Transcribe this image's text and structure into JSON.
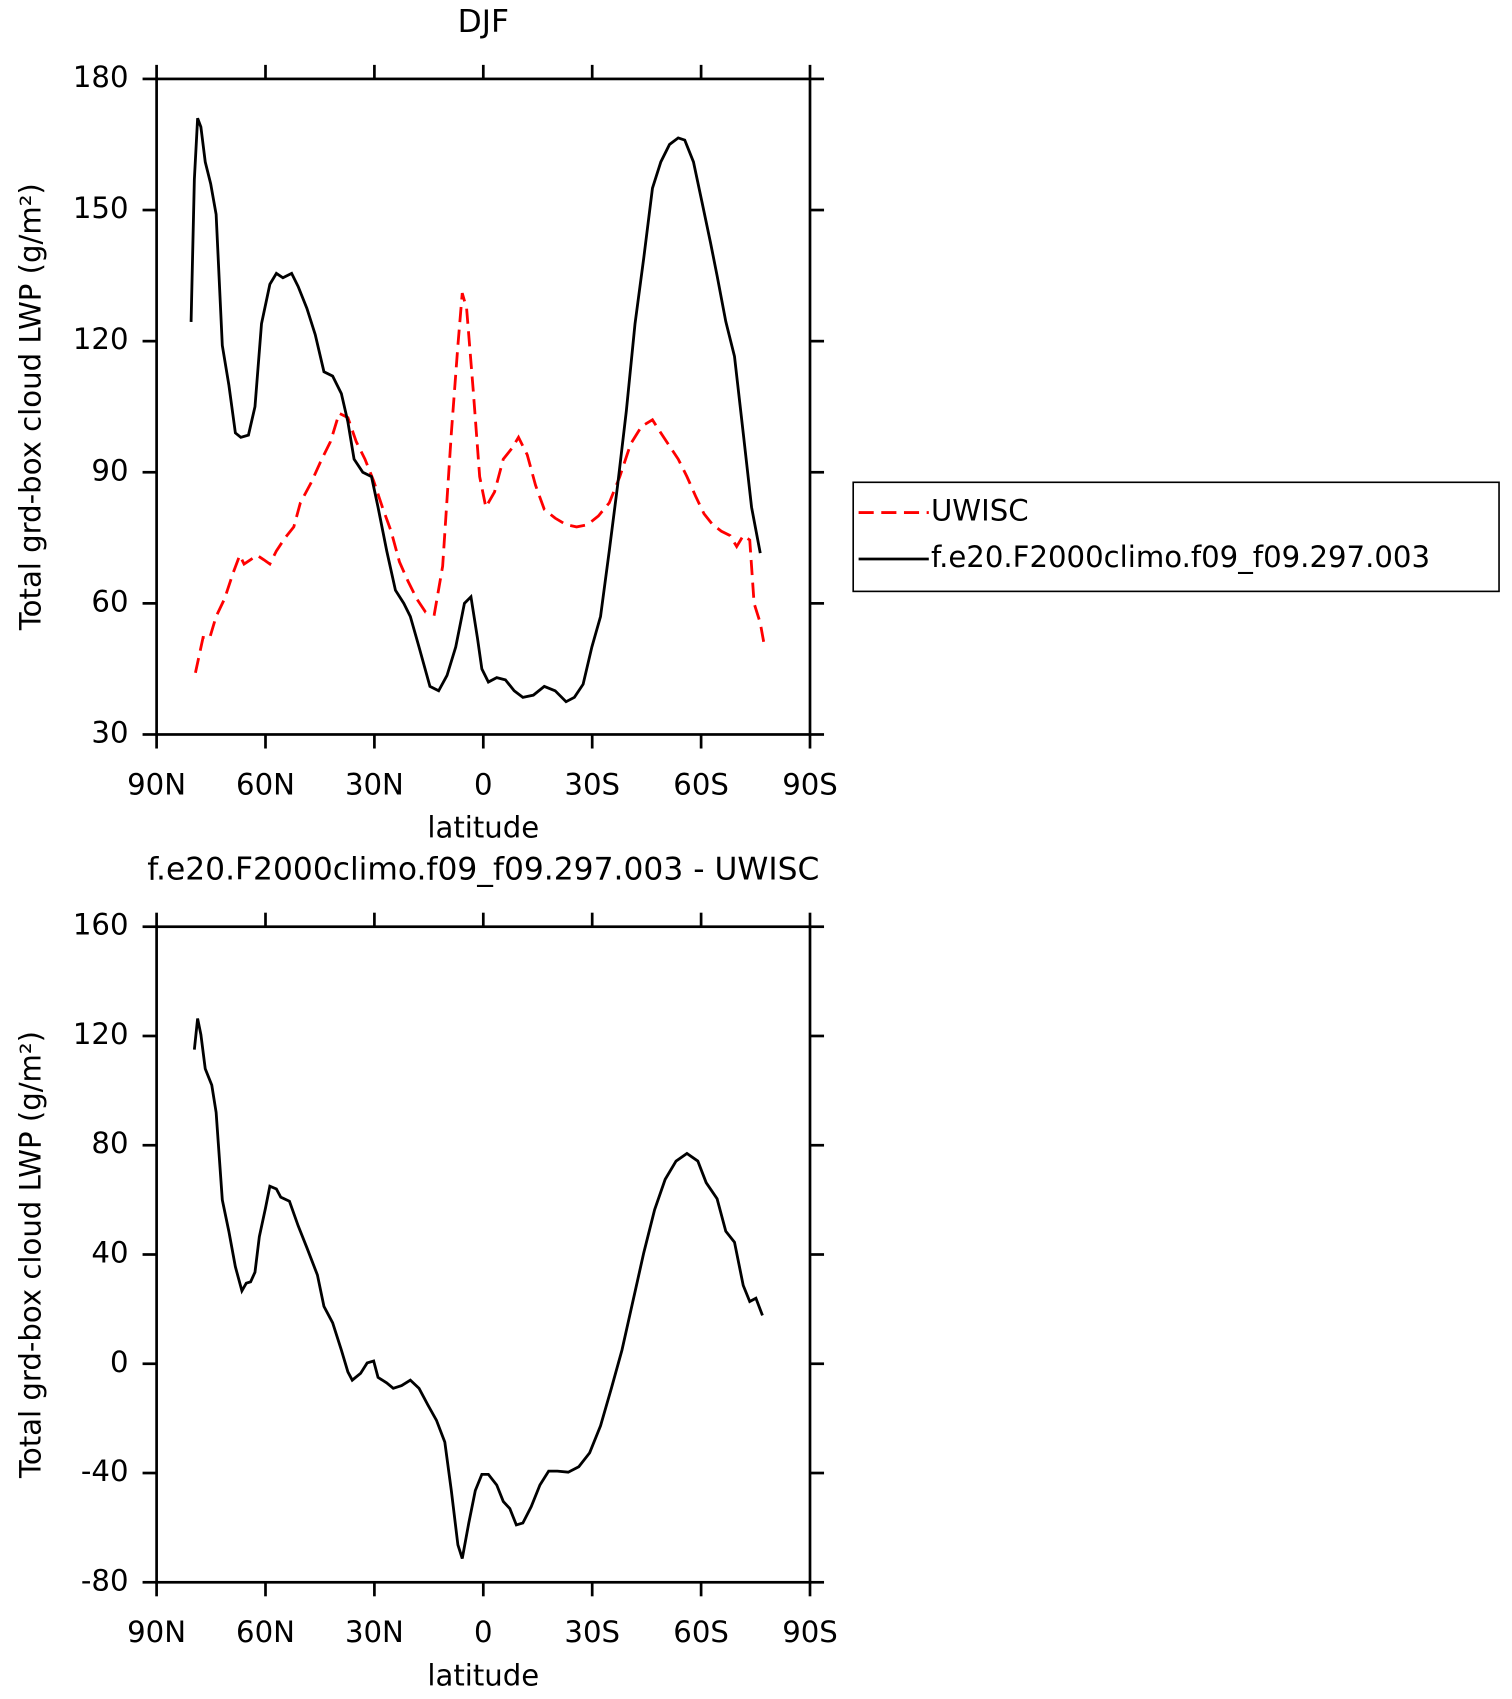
{
  "chart_data": [
    {
      "type": "line",
      "title": "DJF",
      "xlabel": "latitude",
      "ylabel": "Total grd-box cloud LWP (g/m²)",
      "xlim": [
        90,
        -90
      ],
      "xticks": [
        {
          "value": 90,
          "label": "90N"
        },
        {
          "value": 60,
          "label": "60N"
        },
        {
          "value": 30,
          "label": "30N"
        },
        0,
        {
          "value": -30,
          "label": "30S"
        },
        {
          "value": -60,
          "label": "60S"
        },
        {
          "value": -90,
          "label": "90S"
        }
      ],
      "ylim": [
        30,
        180
      ],
      "yticks": [
        30,
        60,
        90,
        120,
        150,
        180
      ],
      "legend": "right",
      "series": [
        {
          "name": "UWISC",
          "color": "#ff0000",
          "dashed": true,
          "x": [
            79.3,
            77.2,
            75.4,
            73.6,
            71.3,
            68.9,
            67.1,
            65.9,
            64.1,
            62.3,
            60.5,
            58.8,
            57.0,
            54.6,
            52.2,
            50.4,
            47.5,
            44.5,
            42.1,
            39.7,
            37.3,
            35.0,
            32.6,
            30.2,
            27.8,
            25.4,
            23.1,
            20.7,
            18.3,
            15.9,
            13.5,
            11.2,
            8.8,
            7.0,
            5.8,
            4.6,
            2.8,
            1.0,
            -0.7,
            -3.1,
            -5.5,
            -7.9,
            -9.7,
            -12.1,
            -14.4,
            -16.8,
            -19.8,
            -22.8,
            -25.7,
            -28.7,
            -31.7,
            -34.7,
            -37.6,
            -40.6,
            -43.6,
            -46.6,
            -48.9,
            -51.3,
            -53.7,
            -56.1,
            -58.5,
            -60.8,
            -63.2,
            -65.6,
            -68.0,
            -69.8,
            -71.6,
            -73.4,
            -74.6,
            -76.3,
            -77.5
          ],
          "values": [
            44.1,
            52.2,
            52,
            57,
            61,
            67,
            71,
            69,
            70,
            71,
            70,
            69,
            72,
            75,
            77.5,
            83,
            87.5,
            93,
            97,
            103.5,
            102.5,
            97,
            93,
            88,
            82,
            76.5,
            69.5,
            65,
            61,
            58,
            57.5,
            68.5,
            99,
            119,
            131,
            127.5,
            109,
            89,
            82,
            85.5,
            93,
            95.5,
            98,
            94,
            87,
            81.5,
            79.5,
            78,
            77.5,
            78,
            80,
            83,
            89,
            96.5,
            100.5,
            102,
            99,
            96,
            93,
            89,
            84.5,
            80.5,
            78,
            76.5,
            75.5,
            73,
            75.5,
            74.5,
            60,
            55.5,
            50
          ]
        },
        {
          "name": "f.e20.F2000climo.f09_f09.297.003",
          "color": "#000000",
          "dashed": false,
          "x": [
            80.5,
            79.6,
            78.7,
            77.8,
            76.6,
            75.1,
            73.6,
            71.9,
            70.1,
            68.3,
            66.8,
            64.7,
            62.9,
            61.1,
            58.8,
            57.0,
            55.2,
            52.8,
            51.0,
            48.6,
            46.3,
            43.9,
            41.5,
            39.1,
            37.3,
            35.6,
            33.2,
            30.8,
            29.0,
            26.6,
            24.2,
            21.9,
            20.1,
            17.7,
            14.7,
            12.3,
            10.0,
            7.6,
            5.2,
            3.4,
            1.6,
            0.4,
            -1.4,
            -3.7,
            -6.1,
            -8.5,
            -10.9,
            -13.8,
            -16.8,
            -19.8,
            -22.8,
            -25.1,
            -27.5,
            -29.9,
            -32.3,
            -34.7,
            -37.0,
            -39.4,
            -41.8,
            -44.2,
            -46.6,
            -48.9,
            -51.3,
            -53.7,
            -55.5,
            -57.9,
            -60.2,
            -62.6,
            -64.4,
            -66.8,
            -69.2,
            -71.6,
            -73.9,
            -76.3
          ],
          "values": [
            124.4,
            157,
            171,
            169,
            161,
            156,
            149,
            119,
            110,
            99,
            98,
            98.5,
            105,
            124,
            133,
            135.5,
            134.5,
            135.5,
            132.5,
            127.5,
            121.5,
            113,
            112,
            108,
            101.5,
            93,
            90,
            89,
            82,
            72,
            63,
            60,
            57,
            50,
            41,
            40,
            43.5,
            50,
            60,
            61.5,
            52,
            45,
            42,
            43,
            42.5,
            40,
            38.5,
            39,
            41,
            40,
            37.5,
            38.5,
            41.5,
            50,
            57,
            72,
            87,
            104,
            124,
            139,
            155,
            161,
            165,
            166.5,
            166,
            161,
            152,
            142.5,
            135,
            124.5,
            116.5,
            99,
            82,
            71.5
          ]
        }
      ]
    },
    {
      "type": "line",
      "title": "f.e20.F2000climo.f09_f09.297.003 - UWISC",
      "xlabel": "latitude",
      "ylabel": "Total grd-box cloud LWP (g/m²)",
      "xlim": [
        90,
        -90
      ],
      "xticks": [
        {
          "value": 90,
          "label": "90N"
        },
        {
          "value": 60,
          "label": "60N"
        },
        {
          "value": 30,
          "label": "30N"
        },
        0,
        {
          "value": -30,
          "label": "30S"
        },
        {
          "value": -60,
          "label": "60S"
        },
        {
          "value": -90,
          "label": "90S"
        }
      ],
      "ylim": [
        -80,
        160
      ],
      "yticks": [
        -80,
        -40,
        0,
        40,
        80,
        120,
        160
      ],
      "series": [
        {
          "color": "#000000",
          "dashed": false,
          "x": [
            79.6,
            78.7,
            77.8,
            76.6,
            74.8,
            73.6,
            71.9,
            70.1,
            68.3,
            66.5,
            65.3,
            64.1,
            62.9,
            61.7,
            60.0,
            58.8,
            57.0,
            55.8,
            53.4,
            51.0,
            48.6,
            45.7,
            43.9,
            41.5,
            39.1,
            37.3,
            36.1,
            33.8,
            32.0,
            30.2,
            29.0,
            26.6,
            24.8,
            22.5,
            20.1,
            17.7,
            15.3,
            12.9,
            10.6,
            8.8,
            7.0,
            5.8,
            4.0,
            2.2,
            0.4,
            -1.4,
            -3.7,
            -5.5,
            -7.3,
            -9.1,
            -10.9,
            -13.2,
            -15.6,
            -18.0,
            -20.4,
            -23.4,
            -26.3,
            -29.3,
            -32.3,
            -35.3,
            -38.2,
            -41.2,
            -44.2,
            -47.2,
            -50.1,
            -53.1,
            -56.1,
            -59.1,
            -61.4,
            -64.4,
            -66.8,
            -69.2,
            -71.6,
            -73.4,
            -75.1,
            -76.9
          ],
          "values": [
            115,
            126.4,
            120.5,
            108,
            102,
            92,
            60,
            48.5,
            35.5,
            26.7,
            29.5,
            30,
            33.5,
            46.5,
            57,
            65,
            64,
            61,
            59.5,
            50.5,
            42.5,
            32.5,
            21,
            15,
            5,
            -3,
            -6,
            -3.5,
            0.3,
            1,
            -5,
            -7,
            -9,
            -8,
            -6,
            -9,
            -15,
            -20.7,
            -28.7,
            -46.5,
            -66.3,
            -71.3,
            -58.3,
            -46.4,
            -40.5,
            -40.5,
            -44.4,
            -50.4,
            -53,
            -59,
            -58.3,
            -52.3,
            -44.4,
            -39.3,
            -39.3,
            -39.7,
            -37.7,
            -32.6,
            -22.7,
            -8.9,
            5,
            22.8,
            40.6,
            56.4,
            67.5,
            74.2,
            77,
            74.2,
            66.3,
            60.4,
            48.5,
            44.5,
            28.7,
            22.8,
            24,
            17.7
          ]
        }
      ]
    }
  ]
}
